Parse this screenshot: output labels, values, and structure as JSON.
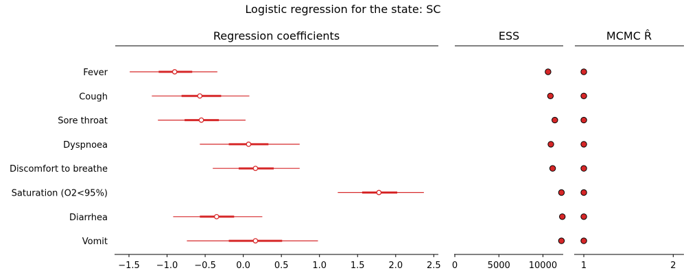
{
  "chart_data": {
    "type": "forest",
    "title": "Logistic regression for the state: SC",
    "colors": {
      "marker": "#d62728",
      "edge": "#000000",
      "axis": "#000000",
      "hollow_fill": "#ffffff"
    },
    "rows": [
      "Fever",
      "Cough",
      "Sore throat",
      "Dyspnoea",
      "Discomfort to breathe",
      "Saturation (O2<95%)",
      "Diarrhea",
      "Vomit"
    ],
    "panels": [
      {
        "title": "Regression coefficients",
        "xlim": [
          -1.68,
          2.56
        ],
        "ticks": [
          -1.5,
          -1.0,
          -0.5,
          0.0,
          0.5,
          1.0,
          1.5,
          2.0,
          2.5
        ],
        "tick_labels": [
          "−1.5",
          "−1.0",
          "−0.5",
          "0.0",
          "0.5",
          "1.0",
          "1.5",
          "2.0",
          "2.5"
        ],
        "series": [
          {
            "label": "Fever",
            "mean": -0.9,
            "iqr": [
              -1.11,
              -0.67
            ],
            "ci": [
              -1.49,
              -0.34
            ]
          },
          {
            "label": "Cough",
            "mean": -0.57,
            "iqr": [
              -0.81,
              -0.29
            ],
            "ci": [
              -1.2,
              0.08
            ]
          },
          {
            "label": "Sore throat",
            "mean": -0.55,
            "iqr": [
              -0.77,
              -0.32
            ],
            "ci": [
              -1.12,
              0.03
            ]
          },
          {
            "label": "Dyspnoea",
            "mean": 0.07,
            "iqr": [
              -0.19,
              0.33
            ],
            "ci": [
              -0.57,
              0.74
            ]
          },
          {
            "label": "Discomfort to breathe",
            "mean": 0.16,
            "iqr": [
              -0.06,
              0.4
            ],
            "ci": [
              -0.4,
              0.74
            ]
          },
          {
            "label": "Saturation (O2<95%)",
            "mean": 1.78,
            "iqr": [
              1.56,
              2.02
            ],
            "ci": [
              1.24,
              2.37
            ]
          },
          {
            "label": "Diarrhea",
            "mean": -0.35,
            "iqr": [
              -0.57,
              -0.12
            ],
            "ci": [
              -0.92,
              0.25
            ]
          },
          {
            "label": "Vomit",
            "mean": 0.16,
            "iqr": [
              -0.19,
              0.51
            ],
            "ci": [
              -0.74,
              0.98
            ]
          }
        ]
      },
      {
        "title": "ESS",
        "xlim": [
          0,
          12300
        ],
        "ticks": [
          0,
          5000,
          10000
        ],
        "tick_labels": [
          "0",
          "5000",
          "10000"
        ],
        "values": [
          10580,
          10850,
          11350,
          10900,
          11100,
          12100,
          12200,
          12100
        ]
      },
      {
        "title": "MCMC R̂",
        "xlim": [
          0.9,
          2.12
        ],
        "ticks": [
          1,
          2
        ],
        "tick_labels": [
          "1",
          "2"
        ],
        "values": [
          1.0,
          1.0,
          1.0,
          1.0,
          1.0,
          1.0,
          1.0,
          1.0
        ]
      }
    ]
  }
}
